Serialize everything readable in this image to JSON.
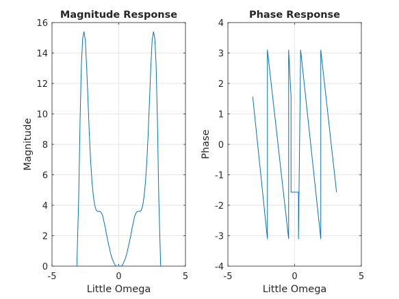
{
  "chart_data": [
    {
      "type": "line",
      "title": "Magnitude Response",
      "xlabel": "Little Omega",
      "ylabel": "Magnitude",
      "xlim": [
        -5,
        5
      ],
      "ylim": [
        0,
        16
      ],
      "xticks": [
        -5,
        0,
        5
      ],
      "yticks": [
        0,
        2,
        4,
        6,
        8,
        10,
        12,
        14,
        16
      ],
      "grid": true,
      "series": [
        {
          "color": "#0072bd",
          "x": [
            -3.14,
            -3.0,
            -2.9,
            -2.8,
            -2.7,
            -2.6,
            -2.5,
            -2.4,
            -2.3,
            -2.2,
            -2.1,
            -2.0,
            -1.9,
            -1.8,
            -1.7,
            -1.6,
            -1.5,
            -1.4,
            -1.3,
            -1.2,
            -1.1,
            -1.0,
            -0.9,
            -0.8,
            -0.7,
            -0.6,
            -0.5,
            -0.4,
            -0.3,
            -0.2,
            -0.1,
            0.0,
            0.1,
            0.2,
            0.3,
            0.4,
            0.5,
            0.6,
            0.7,
            0.8,
            0.9,
            1.0,
            1.1,
            1.2,
            1.3,
            1.4,
            1.5,
            1.6,
            1.7,
            1.8,
            1.9,
            2.0,
            2.1,
            2.2,
            2.3,
            2.4,
            2.5,
            2.6,
            2.7,
            2.8,
            2.9,
            3.0,
            3.14
          ],
          "y": [
            0.0,
            4.5,
            9.5,
            13.2,
            15.0,
            15.4,
            14.8,
            13.0,
            10.8,
            8.6,
            6.8,
            5.5,
            4.6,
            4.0,
            3.7,
            3.6,
            3.6,
            3.6,
            3.5,
            3.3,
            2.9,
            2.5,
            2.0,
            1.6,
            1.2,
            0.8,
            0.5,
            0.3,
            0.1,
            0.02,
            0.0,
            0.0,
            0.0,
            0.02,
            0.1,
            0.3,
            0.5,
            0.8,
            1.2,
            1.6,
            2.0,
            2.5,
            2.9,
            3.3,
            3.5,
            3.6,
            3.6,
            3.6,
            3.7,
            4.0,
            4.6,
            5.5,
            6.8,
            8.6,
            10.8,
            13.0,
            14.8,
            15.4,
            15.0,
            13.2,
            9.5,
            4.5,
            0.0
          ]
        }
      ]
    },
    {
      "type": "line",
      "title": "Phase Response",
      "xlabel": "Little Omega",
      "ylabel": "Phase",
      "xlim": [
        -5,
        5
      ],
      "ylim": [
        -4,
        4
      ],
      "xticks": [
        -5,
        0,
        5
      ],
      "yticks": [
        -4,
        -3,
        -2,
        -1,
        0,
        1,
        2,
        3,
        4
      ],
      "grid": true,
      "series": [
        {
          "color": "#0072bd",
          "x": [
            -3.14,
            -2.04,
            -2.04,
            -0.45,
            -0.45,
            -0.27,
            -0.27,
            0.29,
            0.29,
            0.45,
            0.45,
            1.96,
            1.96,
            3.14
          ],
          "y": [
            1.57,
            -3.1,
            3.1,
            -3.1,
            3.1,
            1.57,
            -1.57,
            -1.57,
            -3.1,
            3.1,
            3.1,
            -3.1,
            3.1,
            -1.57
          ]
        }
      ]
    }
  ]
}
